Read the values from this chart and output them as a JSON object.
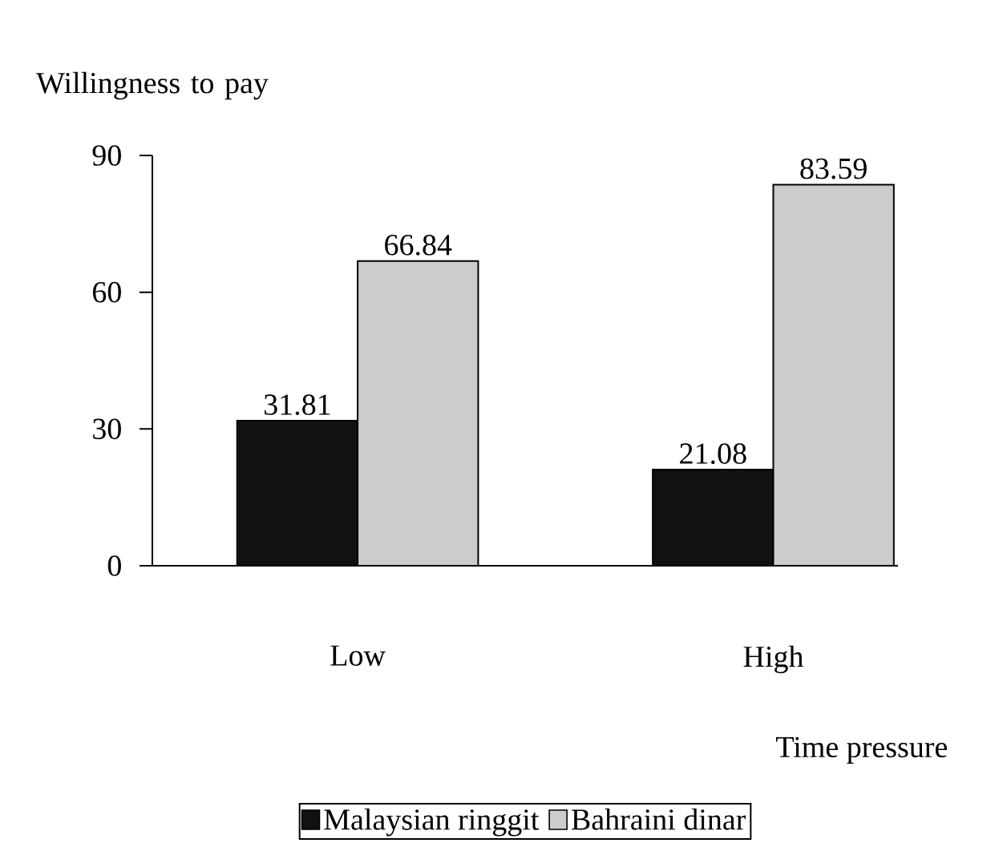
{
  "chart_data": {
    "type": "bar",
    "xlabel": "Time pressure",
    "ylabel": "Willingness to pay",
    "categories": [
      "Low",
      "High"
    ],
    "series": [
      {
        "name": "Malaysian ringgit",
        "color": "#111111",
        "values": [
          31.81,
          21.08
        ]
      },
      {
        "name": "Bahraini dinar",
        "color": "#cccccc",
        "values": [
          66.84,
          83.59
        ]
      }
    ],
    "ylim": [
      0,
      90
    ],
    "yticks": [
      0,
      30,
      60,
      90
    ],
    "data_labels": true,
    "legend": "bottom",
    "grid": false
  }
}
